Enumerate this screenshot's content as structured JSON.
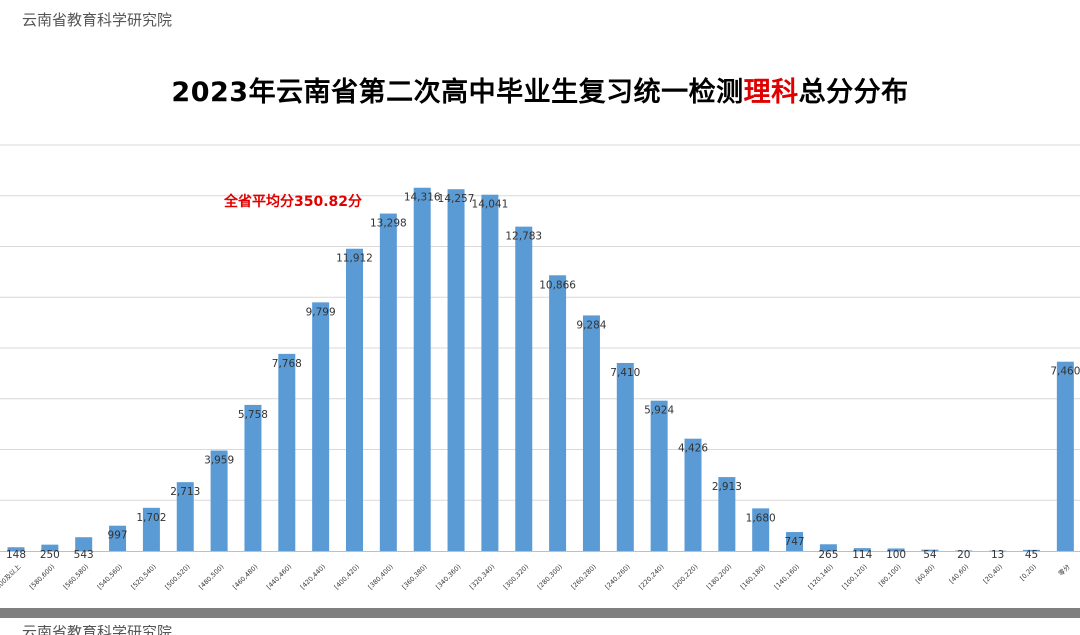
{
  "header": {
    "watermark": "云南省教育科学研究院",
    "title_prefix": "2023年云南省第二次高中毕业生复习统一检测",
    "title_highlight": "理科",
    "title_suffix": "总分分布"
  },
  "annotation": {
    "average_label": "全省平均分350.82分"
  },
  "footer": {
    "watermark": "云南省教育科学研究院"
  },
  "colors": {
    "bar": "#5b9bd5",
    "highlight": "#e00000",
    "grid": "#d9d9d9"
  },
  "chart_data": {
    "type": "bar",
    "title": "2023年云南省第二次高中毕业生复习统一检测理科总分分布",
    "grid": true,
    "categories": [
      "600及以上",
      "[580,600)",
      "[560,580)",
      "[540,560)",
      "[520,540)",
      "[500,520)",
      "[480,500)",
      "[460,480)",
      "[440,460)",
      "[420,440)",
      "[400,420)",
      "[380,400)",
      "[360,380)",
      "[340,360)",
      "[320,340)",
      "[300,320)",
      "[280,300)",
      "[260,280)",
      "[240,260)",
      "[220,240)",
      "[200,220)",
      "[180,200)",
      "[160,180)",
      "[140,160)",
      "[120,140)",
      "[100,120)",
      "[80,100)",
      "[60,80)",
      "[40,60)",
      "[20,40)",
      "[0,20)",
      "零分"
    ],
    "values": [
      148,
      250,
      543,
      997,
      1702,
      2713,
      3959,
      5758,
      7768,
      9799,
      11912,
      13298,
      14316,
      14257,
      14041,
      12783,
      10866,
      9284,
      7410,
      5924,
      4426,
      2913,
      1680,
      747,
      265,
      114,
      100,
      54,
      20,
      13,
      45,
      7460
    ],
    "value_labels": [
      "148",
      "250",
      "543",
      "997",
      "1,702",
      "2,713",
      "3,959",
      "5,758",
      "7,768",
      "9,799",
      "11,912",
      "13,298",
      "14,316",
      "14,257",
      "14,041",
      "12,783",
      "10,866",
      "9,284",
      "7,410",
      "5,924",
      "4,426",
      "2,913",
      "1,680",
      "747",
      "265",
      "114",
      "100",
      "54",
      "20",
      "13",
      "45",
      "7,460"
    ],
    "ylim": [
      0,
      16000
    ]
  }
}
